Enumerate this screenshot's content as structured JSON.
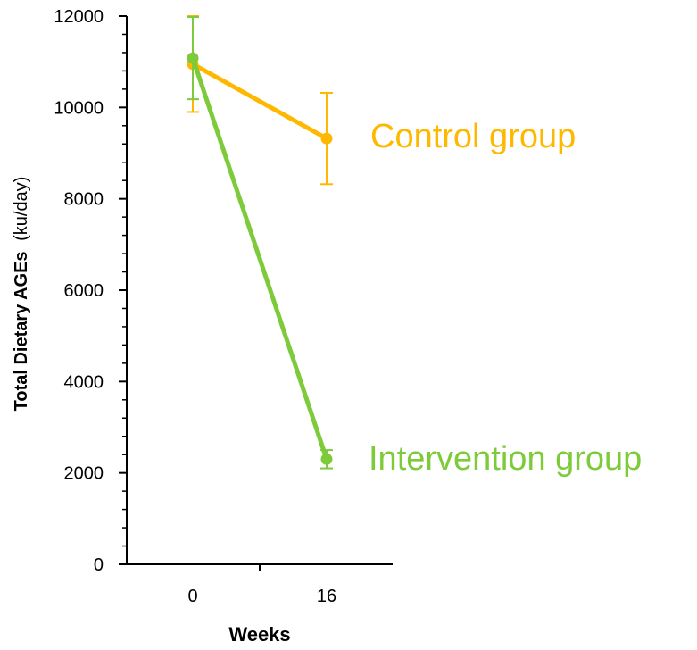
{
  "chart_data": {
    "type": "line",
    "title": "",
    "xlabel": "Weeks",
    "ylabel": {
      "bold": "Total Dietary AGEs",
      "unit": "(ku/day)"
    },
    "categories": [
      "0",
      "16"
    ],
    "x": [
      0,
      16
    ],
    "ylim": [
      0,
      12000
    ],
    "yticks": [
      "0",
      "2000",
      "4000",
      "6000",
      "8000",
      "10000",
      "12000"
    ],
    "grid": false,
    "legend": "none",
    "series": [
      {
        "name": "Control group",
        "color": "#FFB800",
        "values": [
          10950,
          9320
        ],
        "error": [
          1050,
          1000
        ]
      },
      {
        "name": "Intervention group",
        "color": "#7DCB3A",
        "values": [
          11080,
          2300
        ],
        "error": [
          900,
          200
        ]
      }
    ]
  }
}
